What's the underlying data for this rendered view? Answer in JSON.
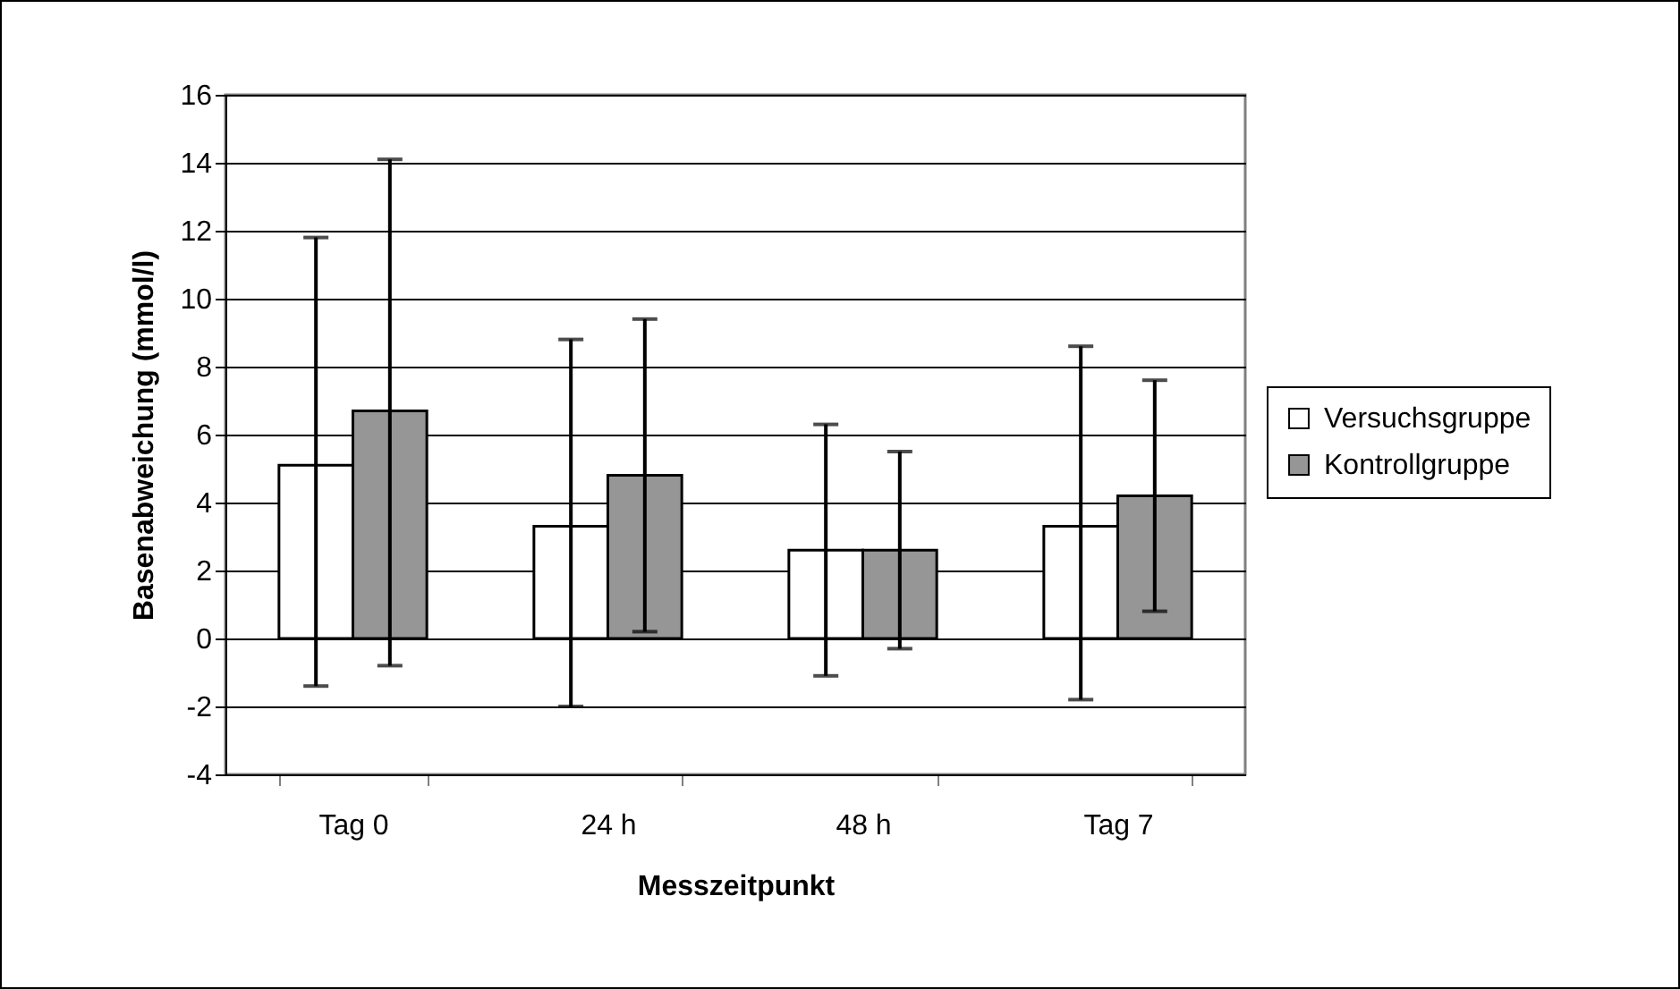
{
  "chart_data": {
    "type": "bar",
    "xlabel": "Messzeitpunkt",
    "ylabel": "Basenabweichung (mmol/l)",
    "categories": [
      "Tag 0",
      "24 h",
      "48 h",
      "Tag 7"
    ],
    "series": [
      {
        "name": "Versuchsgruppe",
        "color": "#ffffff",
        "values": [
          5.1,
          3.3,
          2.6,
          3.3
        ],
        "errors": [
          [
            -1.4,
            11.8
          ],
          [
            -2.0,
            8.8
          ],
          [
            -1.1,
            6.3
          ],
          [
            -1.8,
            8.6
          ]
        ]
      },
      {
        "name": "Kontrollgruppe",
        "color": "#969696",
        "values": [
          6.7,
          4.8,
          2.6,
          4.2
        ],
        "errors": [
          [
            -0.8,
            14.1
          ],
          [
            0.2,
            9.4
          ],
          [
            -0.3,
            5.5
          ],
          [
            0.8,
            7.6
          ]
        ]
      }
    ],
    "ylim": [
      -4,
      16
    ],
    "yticks": [
      -4,
      -2,
      0,
      2,
      4,
      6,
      8,
      10,
      12,
      14,
      16
    ],
    "grid": "y",
    "legend": "right"
  }
}
